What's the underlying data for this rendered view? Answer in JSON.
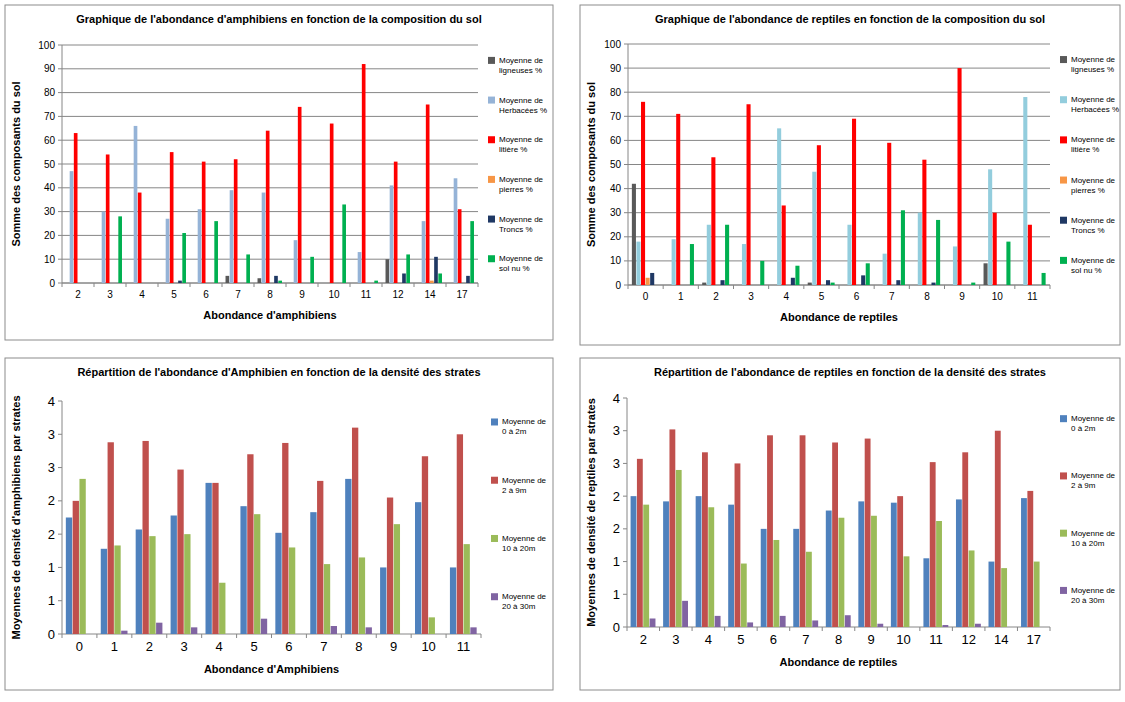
{
  "chart_data": [
    {
      "type": "bar",
      "title": "Graphique de l'abondance d'amphibiens en fonction de la composition du sol",
      "x_label": "Abondance d'amphibiens",
      "y_label": "Somme des composants du sol",
      "categories": [
        "2",
        "3",
        "4",
        "5",
        "6",
        "7",
        "8",
        "9",
        "10",
        "11",
        "12",
        "14",
        "17"
      ],
      "series": [
        {
          "name": "Moyenne de ligneuses %",
          "color": "#595959",
          "values": [
            0,
            0,
            0,
            0,
            0,
            3,
            2,
            0,
            0,
            0,
            10,
            0,
            0
          ]
        },
        {
          "name": "Moyenne de Herbacées %",
          "color": "#95b3d7",
          "values": [
            47,
            30,
            66,
            27,
            31,
            39,
            38,
            18,
            0,
            13,
            41,
            26,
            44
          ]
        },
        {
          "name": "Moyenne de litière %",
          "color": "#ff0000",
          "values": [
            63,
            54,
            38,
            55,
            51,
            52,
            64,
            74,
            67,
            92,
            51,
            75,
            31
          ]
        },
        {
          "name": "Moyenne de pierres %",
          "color": "#f79646",
          "values": [
            0,
            0,
            0,
            0,
            0,
            0,
            0,
            0,
            0,
            0,
            0,
            1,
            0
          ]
        },
        {
          "name": "Moyenne de Troncs %",
          "color": "#1f3864",
          "values": [
            0,
            0,
            0,
            1,
            0,
            0,
            3,
            0,
            0,
            0,
            4,
            11,
            3
          ]
        },
        {
          "name": "Moyenne de sol nu %",
          "color": "#00b050",
          "values": [
            0,
            28,
            0,
            21,
            26,
            12,
            1,
            11,
            33,
            1,
            12,
            4,
            26
          ]
        }
      ],
      "ylim": [
        0,
        100
      ],
      "yticks": [
        0,
        10,
        20,
        30,
        40,
        50,
        60,
        70,
        80,
        90,
        100
      ],
      "grid": true,
      "legend": "right"
    },
    {
      "type": "bar",
      "title": "Graphique de l'abondance de reptiles en fonction de la composition du sol",
      "x_label": "Abondance de reptiles",
      "y_label": "Somme des composants du sol",
      "categories": [
        "0",
        "1",
        "2",
        "3",
        "4",
        "5",
        "6",
        "7",
        "8",
        "9",
        "10",
        "11"
      ],
      "series": [
        {
          "name": "Moyenne de ligneuses %",
          "color": "#595959",
          "values": [
            42,
            0,
            1,
            0,
            0,
            1,
            0,
            0,
            0,
            0,
            9,
            0
          ]
        },
        {
          "name": "Moyenne de Herbacées %",
          "color": "#93cddd",
          "values": [
            18,
            19,
            25,
            17,
            65,
            47,
            25,
            13,
            30,
            16,
            48,
            78
          ]
        },
        {
          "name": "Moyenne de litière %",
          "color": "#ff0000",
          "values": [
            76,
            71,
            53,
            75,
            33,
            58,
            69,
            59,
            52,
            90,
            30,
            25
          ]
        },
        {
          "name": "Moyenne de pierres %",
          "color": "#f79646",
          "values": [
            3,
            0,
            0,
            0,
            0,
            0,
            0,
            0,
            0,
            0,
            0,
            0
          ]
        },
        {
          "name": "Moyenne de Troncs %",
          "color": "#1f3864",
          "values": [
            5,
            0,
            2,
            0,
            3,
            2,
            4,
            2,
            1,
            0,
            0,
            0
          ]
        },
        {
          "name": "Moyenne de sol nu %",
          "color": "#00b050",
          "values": [
            0,
            17,
            25,
            10,
            8,
            1,
            9,
            31,
            27,
            1,
            18,
            5
          ]
        }
      ],
      "ylim": [
        0,
        100
      ],
      "yticks": [
        0,
        10,
        20,
        30,
        40,
        50,
        60,
        70,
        80,
        90,
        100
      ],
      "grid": true,
      "legend": "right"
    },
    {
      "type": "bar",
      "title": "Répartition de l'abondance d'Amphibien en fonction de la densité des strates",
      "x_label": "Abondance d'Amphibiens",
      "y_label": "Moyennes de densité d'amphibiens par strates",
      "categories": [
        "0",
        "1",
        "2",
        "3",
        "4",
        "5",
        "6",
        "7",
        "8",
        "9",
        "10",
        "11"
      ],
      "series": [
        {
          "name": "Moyenne de 0 à 2m",
          "color": "#4f81bd",
          "values": [
            1.75,
            1.28,
            1.57,
            1.78,
            2.27,
            1.92,
            1.52,
            1.83,
            2.33,
            1.0,
            1.98,
            1.0
          ]
        },
        {
          "name": "Moyenne de 2 à 9m",
          "color": "#c0504d",
          "values": [
            2.0,
            2.88,
            2.9,
            2.47,
            2.27,
            2.7,
            2.87,
            2.3,
            3.1,
            2.05,
            2.67,
            3.0
          ]
        },
        {
          "name": "Moyenne de 10 à 20m",
          "color": "#9bbb59",
          "values": [
            2.33,
            1.33,
            1.47,
            1.5,
            0.77,
            1.8,
            1.3,
            1.05,
            1.15,
            1.65,
            0.25,
            1.35
          ]
        },
        {
          "name": "Moyenne de 20 à 30m",
          "color": "#8064a2",
          "values": [
            0,
            0.05,
            0.17,
            0.1,
            0,
            0.23,
            0,
            0.12,
            0.1,
            0,
            0,
            0.1
          ]
        }
      ],
      "ylim": [
        0,
        3.5
      ],
      "yticks": [
        0,
        {
          "value": 0.5,
          "label": "1"
        },
        1,
        {
          "value": 1.5,
          "label": "2"
        },
        2,
        {
          "value": 2.5,
          "label": "3"
        },
        3,
        {
          "value": 3.5,
          "label": "4"
        }
      ],
      "grid": false,
      "legend": "right"
    },
    {
      "type": "bar",
      "title": "Répartition de l'abondance de reptiles en fonction de la densité des strates",
      "x_label": "Abondance de reptiles",
      "y_label": "Moyennes de densité de reptiles par strates",
      "categories": [
        "2",
        "3",
        "4",
        "5",
        "6",
        "7",
        "8",
        "9",
        "10",
        "11",
        "12",
        "14",
        "17"
      ],
      "series": [
        {
          "name": "Moyenne de 0 à 2m",
          "color": "#4f81bd",
          "values": [
            2.0,
            1.92,
            2.0,
            1.87,
            1.5,
            1.5,
            1.78,
            1.92,
            1.9,
            1.05,
            1.95,
            1.0,
            1.97
          ]
        },
        {
          "name": "Moyenne de 2 à 9m",
          "color": "#c0504d",
          "values": [
            2.57,
            3.02,
            2.67,
            2.5,
            2.93,
            2.93,
            2.82,
            2.88,
            2.0,
            2.52,
            2.67,
            3.0,
            2.08
          ]
        },
        {
          "name": "Moyenne de 10 à 20m",
          "color": "#9bbb59",
          "values": [
            1.87,
            2.4,
            1.83,
            0.97,
            1.33,
            1.15,
            1.67,
            1.7,
            1.08,
            1.62,
            1.17,
            0.9,
            1.0
          ]
        },
        {
          "name": "Moyenne de 20 à 30m",
          "color": "#8064a2",
          "values": [
            0.13,
            0.4,
            0.17,
            0.07,
            0.17,
            0.1,
            0.18,
            0.05,
            0,
            0.03,
            0.05,
            0,
            0
          ]
        }
      ],
      "ylim": [
        0,
        3.5
      ],
      "yticks": [
        0,
        {
          "value": 0.5,
          "label": "1"
        },
        1,
        {
          "value": 1.5,
          "label": "2"
        },
        2,
        {
          "value": 2.5,
          "label": "3"
        },
        3,
        {
          "value": 3.5,
          "label": "4"
        }
      ],
      "grid": false,
      "legend": "right"
    }
  ]
}
